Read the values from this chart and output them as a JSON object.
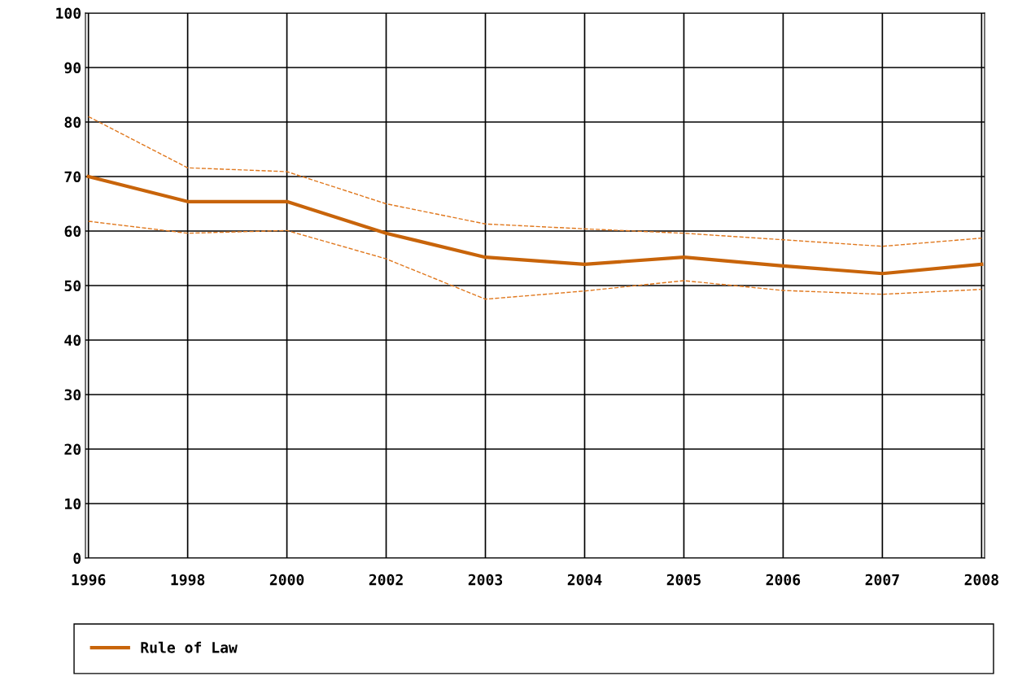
{
  "chart_data": {
    "type": "line",
    "categories": [
      "1996",
      "1998",
      "2000",
      "2002",
      "2003",
      "2004",
      "2005",
      "2006",
      "2007",
      "2008"
    ],
    "series": [
      {
        "name": "Rule of Law",
        "color": "#c8640a",
        "values": [
          70,
          65.4,
          65.4,
          59.6,
          55.2,
          53.9,
          55.2,
          53.6,
          52.2,
          53.9
        ],
        "line_style": "solid"
      },
      {
        "color": "#e0781e",
        "values": [
          81,
          71.6,
          70.9,
          65,
          61.3,
          60.4,
          59.6,
          58.4,
          57.2,
          58.7
        ],
        "line_style": "dashed"
      },
      {
        "color": "#e0781e",
        "values": [
          61.8,
          59.6,
          60.1,
          54.9,
          47.5,
          49,
          50.9,
          49.1,
          48.4,
          49.3
        ],
        "line_style": "dashed"
      }
    ],
    "ylim": [
      0,
      100
    ],
    "yticks": [
      0,
      10,
      20,
      30,
      40,
      50,
      60,
      70,
      80,
      90,
      100
    ],
    "grid": true,
    "legend": "bottom"
  }
}
